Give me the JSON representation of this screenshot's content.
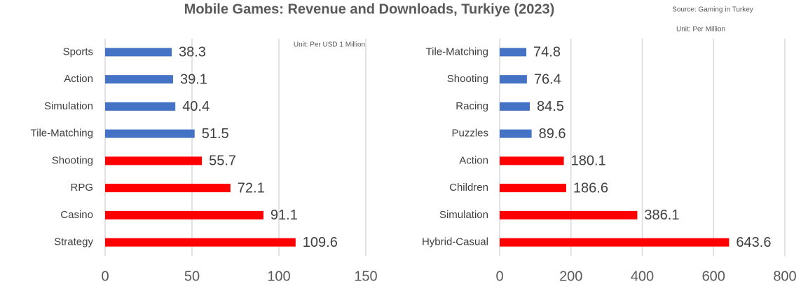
{
  "header": {
    "title": "Mobile Games: Revenue and Downloads, Turkiye (2023)",
    "source": "Source: Gaming in Turkey"
  },
  "chart_data": [
    {
      "type": "bar",
      "orientation": "horizontal",
      "annotation": "Unit: Per USD 1 Million",
      "categories": [
        "Sports",
        "Action",
        "Simulation",
        "Tile-Matching",
        "Shooting",
        "RPG",
        "Casino",
        "Strategy"
      ],
      "values": [
        38.3,
        39.1,
        40.4,
        51.5,
        55.7,
        72.1,
        91.1,
        109.6
      ],
      "colors": [
        "#4472c4",
        "#4472c4",
        "#4472c4",
        "#4472c4",
        "#ff0000",
        "#ff0000",
        "#ff0000",
        "#ff0000"
      ],
      "xlim": [
        0,
        150
      ],
      "xticks": [
        0,
        50,
        100,
        150
      ],
      "grid": true
    },
    {
      "type": "bar",
      "orientation": "horizontal",
      "annotation": "Unit: Per Million",
      "categories": [
        "Tile-Matching",
        "Shooting",
        "Racing",
        "Puzzles",
        "Action",
        "Children",
        "Simulation",
        "Hybrid-Casual"
      ],
      "values": [
        74.8,
        76.4,
        84.5,
        89.6,
        180.1,
        186.6,
        386.1,
        643.6
      ],
      "colors": [
        "#4472c4",
        "#4472c4",
        "#4472c4",
        "#4472c4",
        "#ff0000",
        "#ff0000",
        "#ff0000",
        "#ff0000"
      ],
      "xlim": [
        0,
        800
      ],
      "xticks": [
        0,
        200,
        400,
        600,
        800
      ],
      "grid": true
    }
  ]
}
